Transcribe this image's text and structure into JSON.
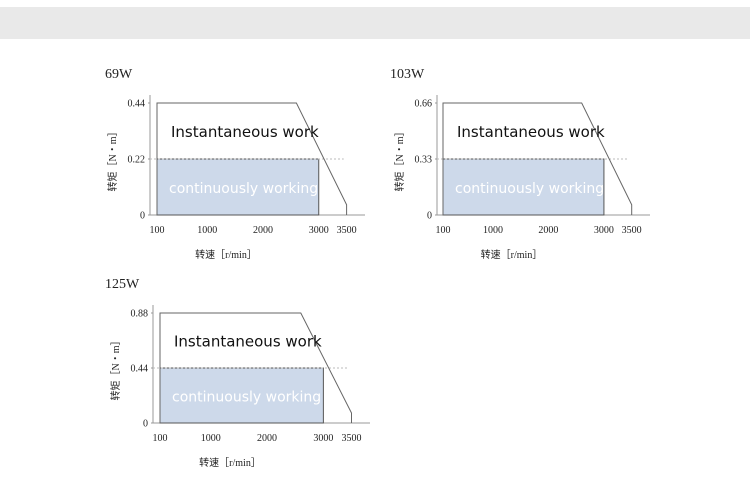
{
  "chart_data": [
    {
      "type": "area",
      "title": "69W",
      "ylabel": "转矩［N・m］",
      "xlabel": "转速［r/min］",
      "x_ticks": [
        100,
        1000,
        2000,
        3000,
        3500
      ],
      "y_ticks": [
        "0",
        "0.22",
        "0.44"
      ],
      "xlim": [
        100,
        3650
      ],
      "ylim": [
        0,
        0.44
      ],
      "series": [
        {
          "name": "Instantaneous work",
          "points": [
            [
              100,
              0.44
            ],
            [
              2600,
              0.44
            ],
            [
              3500,
              0.04
            ],
            [
              3500,
              0
            ]
          ]
        },
        {
          "name": "continuously working",
          "points": [
            [
              100,
              0.22
            ],
            [
              3000,
              0.22
            ],
            [
              3000,
              0
            ]
          ]
        }
      ]
    },
    {
      "type": "area",
      "title": "103W",
      "ylabel": "转矩［N・m］",
      "xlabel": "转速［r/min］",
      "x_ticks": [
        100,
        1000,
        2000,
        3000,
        3500
      ],
      "y_ticks": [
        "0",
        "0.33",
        "0.66"
      ],
      "xlim": [
        100,
        3650
      ],
      "ylim": [
        0,
        0.66
      ],
      "series": [
        {
          "name": "Instantaneous work",
          "points": [
            [
              100,
              0.66
            ],
            [
              2600,
              0.66
            ],
            [
              3500,
              0.06
            ],
            [
              3500,
              0
            ]
          ]
        },
        {
          "name": "continuously working",
          "points": [
            [
              100,
              0.33
            ],
            [
              3000,
              0.33
            ],
            [
              3000,
              0
            ]
          ]
        }
      ]
    },
    {
      "type": "area",
      "title": "125W",
      "ylabel": "转矩［N・m］",
      "xlabel": "转速［r/min］",
      "x_ticks": [
        100,
        1000,
        2000,
        3000,
        3500
      ],
      "y_ticks": [
        "0",
        "0.44",
        "0.88"
      ],
      "xlim": [
        100,
        3650
      ],
      "ylim": [
        0,
        0.88
      ],
      "series": [
        {
          "name": "Instantaneous work",
          "points": [
            [
              100,
              0.88
            ],
            [
              2600,
              0.88
            ],
            [
              3500,
              0.08
            ],
            [
              3500,
              0
            ]
          ]
        },
        {
          "name": "continuously working",
          "points": [
            [
              100,
              0.44
            ],
            [
              3000,
              0.44
            ],
            [
              3000,
              0
            ]
          ]
        }
      ]
    }
  ],
  "colors": {
    "band": "#e9e9e9",
    "continuous_fill": "#cdd9ea",
    "continuous_stroke": "#555555",
    "instantaneous_stroke": "#666666",
    "axis": "#999999"
  }
}
